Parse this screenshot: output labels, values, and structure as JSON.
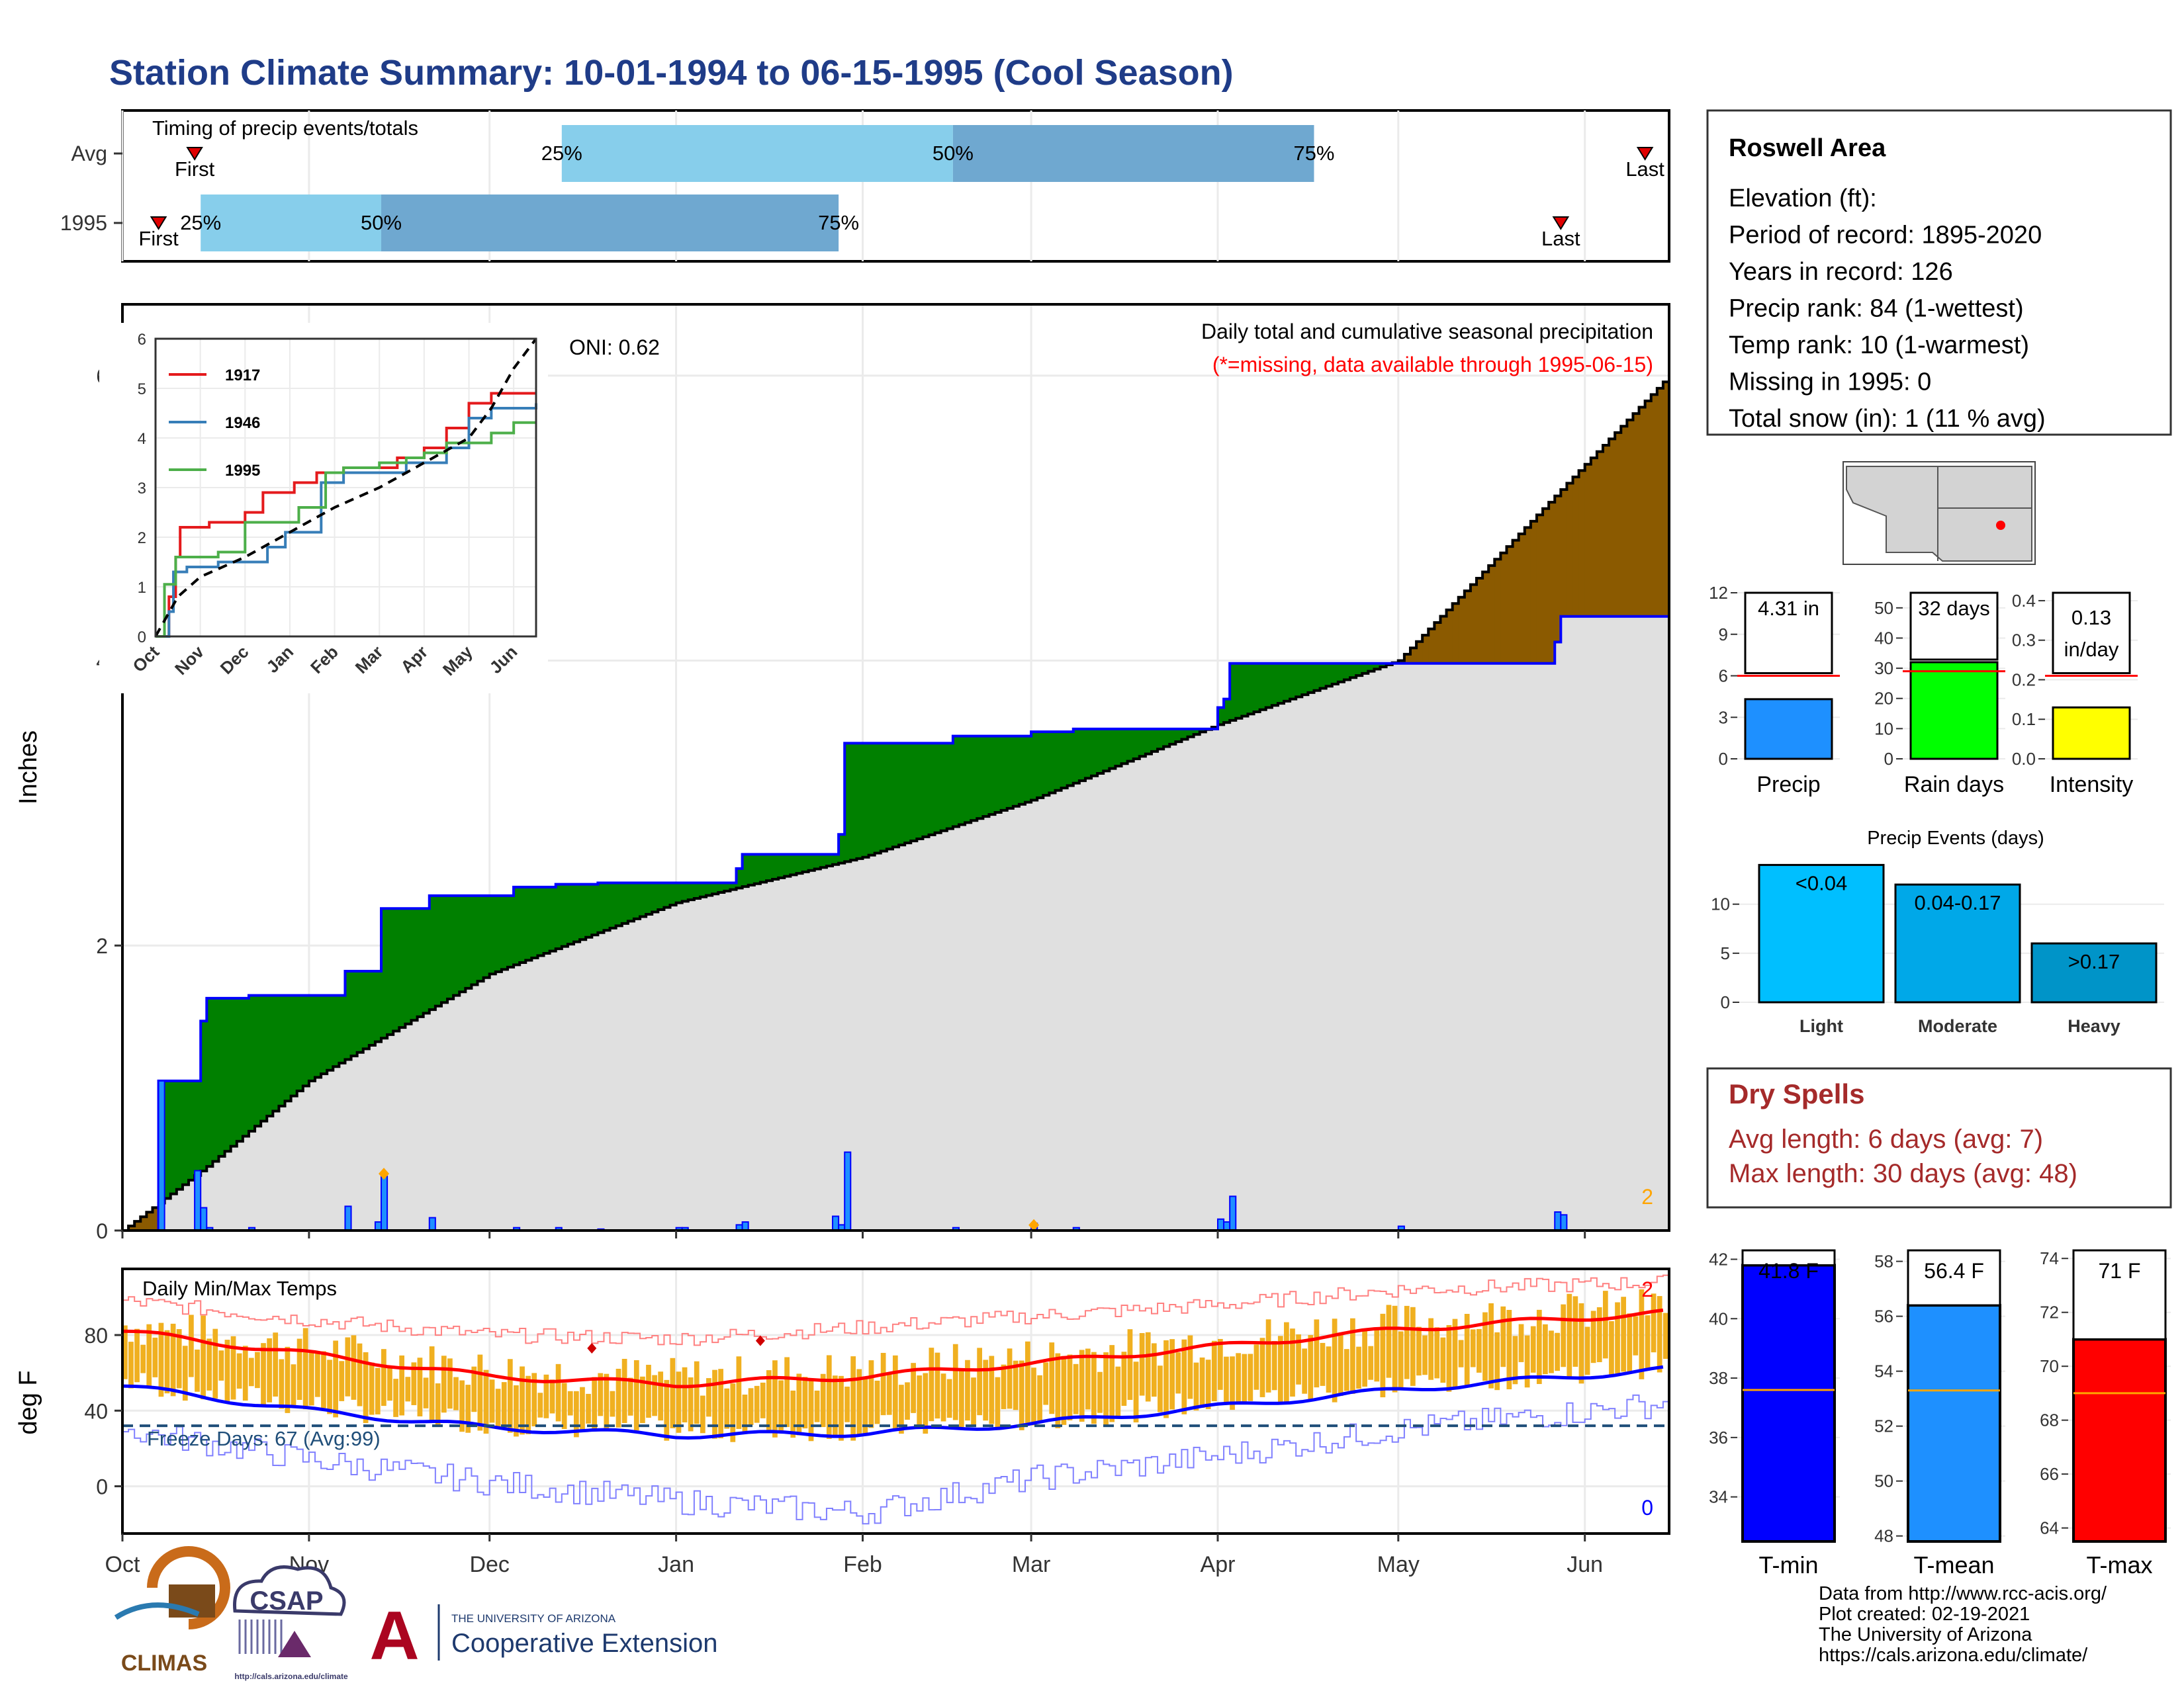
{
  "title": "Station Climate Summary: 10-01-1994 to 06-15-1995 (Cool Season)",
  "colors": {
    "title": "#1f3c88",
    "precip_bar": "#1e90ff",
    "precip_line": "#0000ff",
    "above_fill": "#008000",
    "below_fill": "#8b5a00",
    "avg_fill": "#e0e0e0",
    "timing_light": "#87ceeb",
    "timing_dark": "#6fa8d0",
    "tmax": "#ff0000",
    "tmin": "#0000ff",
    "temp_bars": "#f0b020",
    "dry": "#a52a2a"
  },
  "timing": {
    "title": "Timing of precip events/totals",
    "rows": [
      {
        "label": "Avg",
        "first_label": "First",
        "last_label": "Last",
        "first_date": "1994-10-13",
        "last_date": "1995-06-11",
        "pct25_label": "25%",
        "pct50_label": "50%",
        "pct75_label": "75%",
        "pct25": "1994-12-13",
        "pct50": "1995-02-16",
        "pct75": "1995-04-17"
      },
      {
        "label": "1995",
        "first_label": "First",
        "last_label": "Last",
        "first_date": "1994-10-07",
        "last_date": "1995-05-28",
        "pct25_label": "25%",
        "pct50_label": "50%",
        "pct75_label": "75%",
        "pct25": "1994-10-14",
        "pct50": "1994-11-13",
        "pct75": "1995-01-28"
      }
    ]
  },
  "main_chart": {
    "ylabel": "Inches",
    "oni": "ONI: 0.62",
    "title": "Daily total and cumulative seasonal precipitation",
    "subtitle": "(*=missing, data available through 1995-06-15)",
    "missing_count": "2",
    "yticks": [
      "0",
      "2",
      "4",
      "6"
    ],
    "ylim": [
      0,
      6.5
    ],
    "month_labels": [
      "Oct",
      "Nov",
      "Dec",
      "Jan",
      "Feb",
      "Mar",
      "Apr",
      "May",
      "Jun"
    ]
  },
  "chart_data": [
    {
      "type": "area",
      "title": "Daily total and cumulative seasonal precipitation",
      "ylabel": "Inches",
      "ylim": [
        0,
        6.5
      ],
      "x_start": "1994-10-01",
      "x_end": "1995-06-15",
      "series": [
        {
          "name": "1995 cumulative",
          "x": [
            "1994-10-01",
            "1994-10-07",
            "1994-10-14",
            "1994-10-15",
            "1994-10-22",
            "1994-11-07",
            "1994-11-13",
            "1994-11-21",
            "1994-12-05",
            "1994-12-12",
            "1994-12-19",
            "1995-01-11",
            "1995-01-12",
            "1995-01-28",
            "1995-01-29",
            "1995-02-16",
            "1995-03-01",
            "1995-03-08",
            "1995-04-01",
            "1995-04-02",
            "1995-04-03",
            "1995-05-27",
            "1995-05-28",
            "1995-06-15"
          ],
          "y": [
            0,
            1.05,
            1.47,
            1.63,
            1.65,
            1.82,
            2.26,
            2.35,
            2.41,
            2.43,
            2.44,
            2.54,
            2.64,
            2.78,
            3.42,
            3.47,
            3.5,
            3.52,
            3.67,
            3.73,
            3.98,
            4.13,
            4.31,
            4.31
          ]
        },
        {
          "name": "Average cumulative",
          "x": [
            "1994-10-01",
            "1994-10-15",
            "1994-11-01",
            "1994-11-15",
            "1994-12-01",
            "1995-01-01",
            "1995-02-01",
            "1995-03-01",
            "1995-04-01",
            "1995-05-01",
            "1995-06-15"
          ],
          "y": [
            0,
            0.45,
            1.05,
            1.4,
            1.8,
            2.3,
            2.62,
            3.02,
            3.55,
            4.0,
            6.0
          ]
        },
        {
          "name": "Daily precip",
          "x": [
            "1994-10-07",
            "1994-10-13",
            "1994-10-14",
            "1994-10-15",
            "1994-10-22",
            "1994-11-07",
            "1994-11-12",
            "1994-11-13",
            "1994-11-21",
            "1994-12-05",
            "1994-12-12",
            "1994-12-19",
            "1995-01-01",
            "1995-01-02",
            "1995-01-11",
            "1995-01-12",
            "1995-01-27",
            "1995-01-28",
            "1995-01-29",
            "1995-02-16",
            "1995-03-01",
            "1995-03-08",
            "1995-04-01",
            "1995-04-02",
            "1995-04-03",
            "1995-05-01",
            "1995-05-27",
            "1995-05-28"
          ],
          "y": [
            1.05,
            0.42,
            0.16,
            0.02,
            0.02,
            0.17,
            0.06,
            0.38,
            0.09,
            0.02,
            0.02,
            0.01,
            0.02,
            0.02,
            0.04,
            0.06,
            0.1,
            0.04,
            0.55,
            0.02,
            0.05,
            0.02,
            0.08,
            0.06,
            0.24,
            0.03,
            0.13,
            0.11
          ]
        }
      ]
    },
    {
      "type": "line",
      "title": "",
      "xlabel": "",
      "ylabel": "",
      "ylim": [
        0,
        6
      ],
      "yticks": [
        "0",
        "1",
        "2",
        "3",
        "4",
        "5",
        "6"
      ],
      "xticks": [
        "Oct",
        "Nov",
        "Dec",
        "Jan",
        "Feb",
        "Mar",
        "Apr",
        "May",
        "Jun"
      ],
      "series": [
        {
          "name": "1917",
          "x": [
            0,
            0.3,
            0.45,
            0.55,
            1.2,
            2.0,
            2.4,
            3.1,
            3.6,
            4.2,
            5.0,
            5.4,
            5.6,
            6.0,
            6.5,
            7.0,
            7.5,
            8.5
          ],
          "y": [
            0,
            0.8,
            1.6,
            2.2,
            2.3,
            2.5,
            2.9,
            3.1,
            3.3,
            3.4,
            3.4,
            3.6,
            3.6,
            3.8,
            4.2,
            4.7,
            4.9,
            4.9
          ]
        },
        {
          "name": "1946",
          "x": [
            0,
            0.3,
            0.4,
            0.7,
            1.4,
            2.5,
            2.9,
            3.2,
            3.7,
            4.2,
            5.0,
            5.6,
            6.5,
            7.0,
            7.5,
            8.5
          ],
          "y": [
            0,
            0.5,
            1.3,
            1.4,
            1.5,
            1.8,
            2.1,
            2.1,
            3.1,
            3.3,
            3.3,
            3.5,
            3.8,
            4.4,
            4.6,
            4.7
          ]
        },
        {
          "name": "1995",
          "x": [
            0,
            0.2,
            0.45,
            1.4,
            2.0,
            3.2,
            3.8,
            4.2,
            5.0,
            5.6,
            6.0,
            6.5,
            7.0,
            7.5,
            8.0,
            8.5
          ],
          "y": [
            0,
            1.05,
            1.6,
            1.7,
            2.3,
            2.6,
            3.3,
            3.4,
            3.5,
            3.6,
            3.7,
            3.9,
            3.9,
            4.1,
            4.31,
            4.31
          ]
        },
        {
          "name": "Average",
          "x": [
            0,
            0.5,
            1.0,
            2.0,
            3.0,
            4.0,
            5.0,
            6.0,
            7.0,
            7.5,
            8.0,
            8.5
          ],
          "y": [
            0,
            0.8,
            1.2,
            1.6,
            2.1,
            2.6,
            3.0,
            3.5,
            4.0,
            4.6,
            5.4,
            6.0
          ]
        }
      ]
    },
    {
      "type": "bar",
      "title": "",
      "categories": [
        "Precip"
      ],
      "values": [
        4.31
      ],
      "avg": 6.0,
      "ylim": [
        0,
        12
      ],
      "yticks": [
        "0",
        "3",
        "6",
        "9",
        "12"
      ],
      "value_label": "4.31 in"
    },
    {
      "type": "bar",
      "title": "",
      "categories": [
        "Rain days"
      ],
      "values": [
        32
      ],
      "avg": 29,
      "ylim": [
        0,
        55
      ],
      "yticks": [
        "0",
        "10",
        "20",
        "30",
        "40",
        "50"
      ],
      "value_label": "32 days"
    },
    {
      "type": "bar",
      "title": "",
      "categories": [
        "Intensity"
      ],
      "values": [
        0.13
      ],
      "avg": 0.21,
      "ylim": [
        0,
        0.42
      ],
      "yticks": [
        "0.0",
        "0.1",
        "0.2",
        "0.3",
        "0.4"
      ],
      "value_label": "0.13 in/day"
    },
    {
      "type": "bar",
      "title": "Precip Events (days)",
      "categories": [
        "Light",
        "Moderate",
        "Heavy"
      ],
      "bar_labels": [
        "<0.04",
        "0.04-0.17",
        ">0.17"
      ],
      "values": [
        14,
        12,
        6
      ],
      "ylim": [
        0,
        14.5
      ],
      "yticks": [
        "0",
        "5",
        "10"
      ]
    },
    {
      "type": "line",
      "title": "Daily Min/Max Temps",
      "ylabel": "deg F",
      "ylim": [
        -25,
        115
      ],
      "yticks": [
        "0",
        "40",
        "80"
      ],
      "freeze_line": 32,
      "freeze_label": "Freeze Days: 67 (Avg:99)",
      "max_missing": "2",
      "min_missing": "0",
      "series": [
        {
          "name": "Avg Tmax",
          "x": [
            "1994-10-01",
            "1994-11-01",
            "1994-12-01",
            "1995-01-01",
            "1995-02-01",
            "1995-03-01",
            "1995-04-01",
            "1995-05-01",
            "1995-06-15"
          ],
          "y": [
            82,
            70,
            58,
            54,
            58,
            65,
            74,
            83,
            92
          ]
        },
        {
          "name": "Avg Tmin",
          "x": [
            "1994-10-01",
            "1994-11-01",
            "1994-12-01",
            "1995-01-01",
            "1995-02-01",
            "1995-03-01",
            "1995-04-01",
            "1995-05-01",
            "1995-06-15"
          ],
          "y": [
            53,
            40,
            31,
            27,
            28,
            33,
            42,
            51,
            62
          ]
        },
        {
          "name": "Record high",
          "x": [
            "1994-10-01",
            "1994-11-01",
            "1994-12-01",
            "1995-01-01",
            "1995-02-01",
            "1995-03-01",
            "1995-04-01",
            "1995-05-01",
            "1995-06-15"
          ],
          "y": [
            98,
            88,
            80,
            78,
            84,
            90,
            96,
            104,
            108
          ]
        },
        {
          "name": "Record low",
          "x": [
            "1994-10-01",
            "1994-11-01",
            "1994-12-01",
            "1995-01-01",
            "1995-02-01",
            "1995-03-01",
            "1995-04-01",
            "1995-05-01",
            "1995-06-15"
          ],
          "y": [
            30,
            14,
            2,
            -8,
            -14,
            4,
            16,
            30,
            44
          ]
        }
      ]
    },
    {
      "type": "bar",
      "title": "",
      "categories": [
        "T-min"
      ],
      "values": [
        41.8
      ],
      "avg": 37.6,
      "ylim": [
        32.5,
        42.3
      ],
      "yticks": [
        "34",
        "36",
        "38",
        "40",
        "42"
      ],
      "value_label": "41.8 F"
    },
    {
      "type": "bar",
      "title": "",
      "categories": [
        "T-mean"
      ],
      "values": [
        56.4
      ],
      "avg": 53.3,
      "ylim": [
        47.8,
        58.4
      ],
      "yticks": [
        "48",
        "50",
        "52",
        "54",
        "56",
        "58"
      ],
      "value_label": "56.4 F"
    },
    {
      "type": "bar",
      "title": "",
      "categories": [
        "T-max"
      ],
      "values": [
        71.0
      ],
      "avg": 69.0,
      "ylim": [
        63.5,
        74.3
      ],
      "yticks": [
        "64",
        "66",
        "68",
        "70",
        "72",
        "74"
      ],
      "value_label": "71 F"
    }
  ],
  "info": {
    "station": "Roswell Area",
    "lines": [
      "Elevation (ft):",
      "Period of record: 1895-2020",
      "Years in record: 126",
      "Precip rank: 84 (1-wettest)",
      "Temp rank: 10 (1-warmest)",
      "Missing in 1995: 0",
      "Total snow (in): 1 (11 % avg)"
    ]
  },
  "inset_legend": [
    "1917",
    "1946",
    "1995"
  ],
  "inset_colors": [
    "#e41a1c",
    "#377eb8",
    "#4daf4a"
  ],
  "dry_spells": {
    "title": "Dry Spells",
    "avg": "Avg length: 6 days (avg: 7)",
    "max": "Max length: 30 days (avg: 48)"
  },
  "footer": {
    "lines": [
      "Data from http://www.rcc-acis.org/",
      "Plot created: 02-19-2021",
      "The University of Arizona",
      "https://cals.arizona.edu/climate/"
    ],
    "climas": "CLIMAS",
    "csap": "CSAP",
    "csap_url": "http://cals.arizona.edu/climate",
    "ua_small": "THE UNIVERSITY OF ARIZONA",
    "ua_big": "Cooperative Extension",
    "ua_letter": "A"
  }
}
